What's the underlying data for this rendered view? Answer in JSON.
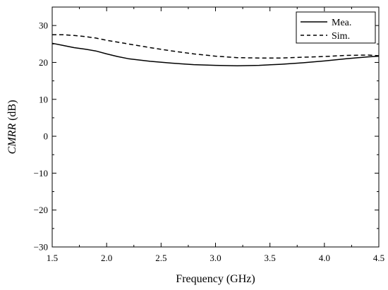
{
  "chart_data": {
    "type": "line",
    "xlabel": "Frequency (GHz)",
    "ylabel_italic": "CMRR",
    "ylabel_unit": " (dB)",
    "xlim": [
      1.5,
      4.5
    ],
    "ylim": [
      -30,
      35
    ],
    "xticks": [
      1.5,
      2.0,
      2.5,
      3.0,
      3.5,
      4.0,
      4.5
    ],
    "xtick_labels": [
      "1.5",
      "2.0",
      "2.5",
      "3.0",
      "3.5",
      "4.0",
      "4.5"
    ],
    "yticks": [
      -30,
      -20,
      -10,
      0,
      10,
      20,
      30
    ],
    "ytick_labels": [
      "−30",
      "−20",
      "−10",
      "0",
      "10",
      "20",
      "30"
    ],
    "grid": false,
    "legend_position": "top-right",
    "series": [
      {
        "name": "Mea.",
        "style": "solid",
        "color": "#000000",
        "x": [
          1.5,
          1.6,
          1.7,
          1.8,
          1.9,
          2.0,
          2.1,
          2.2,
          2.4,
          2.6,
          2.8,
          3.0,
          3.2,
          3.4,
          3.6,
          3.8,
          4.0,
          4.2,
          4.4,
          4.5
        ],
        "y": [
          25.2,
          24.6,
          24.0,
          23.6,
          23.1,
          22.3,
          21.6,
          21.0,
          20.3,
          19.8,
          19.4,
          19.2,
          19.1,
          19.2,
          19.5,
          19.9,
          20.4,
          21.0,
          21.5,
          21.7
        ]
      },
      {
        "name": "Sim.",
        "style": "dashed",
        "color": "#000000",
        "x": [
          1.5,
          1.6,
          1.7,
          1.8,
          1.9,
          2.0,
          2.2,
          2.4,
          2.6,
          2.8,
          3.0,
          3.2,
          3.4,
          3.6,
          3.8,
          4.0,
          4.2,
          4.4,
          4.5
        ],
        "y": [
          27.5,
          27.5,
          27.3,
          27.0,
          26.6,
          26.0,
          25.0,
          24.0,
          23.1,
          22.3,
          21.7,
          21.3,
          21.2,
          21.2,
          21.4,
          21.6,
          21.9,
          22.0,
          21.8
        ]
      }
    ]
  }
}
